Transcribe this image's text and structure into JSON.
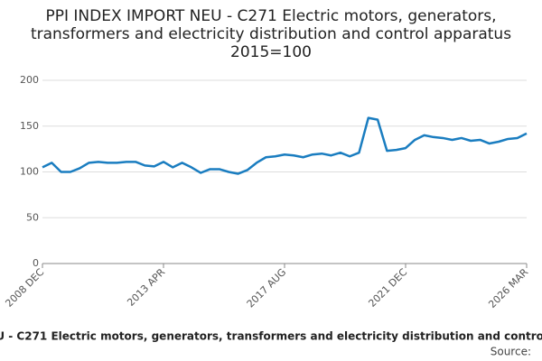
{
  "chart_data": {
    "type": "line",
    "title": "PPI INDEX IMPORT NEU - C271 Electric motors, generators, transformers and electricity distribution and control apparatus 2015=100",
    "source": "Source:",
    "categories": [
      "2008 DEC",
      null,
      null,
      null,
      null,
      null,
      null,
      null,
      null,
      null,
      null,
      null,
      null,
      "2013 APR",
      null,
      null,
      null,
      null,
      null,
      null,
      null,
      null,
      null,
      null,
      null,
      null,
      "2017 AUG",
      null,
      null,
      null,
      null,
      null,
      null,
      null,
      null,
      null,
      null,
      null,
      null,
      "2021 DEC",
      null,
      null,
      null,
      null,
      null,
      null,
      null,
      null,
      null,
      null,
      null,
      null,
      "2026 MAR"
    ],
    "series": [
      {
        "name": "PPI INDEX IMPORT NEU - C271",
        "color": "#1a7dc0",
        "values": [
          105,
          110,
          100,
          100,
          104,
          110,
          111,
          110,
          110,
          111,
          111,
          107,
          106,
          111,
          105,
          110,
          105,
          99,
          103,
          103,
          100,
          98,
          102,
          110,
          116,
          117,
          119,
          118,
          116,
          119,
          120,
          118,
          121,
          117,
          121,
          159,
          157,
          123,
          124,
          126,
          135,
          140,
          138,
          137,
          135,
          137,
          134,
          135,
          131,
          133,
          136,
          137,
          142
        ]
      }
    ],
    "ylim": [
      0,
      200
    ],
    "yticks": [
      0,
      50,
      100,
      150,
      200
    ],
    "grid": true
  }
}
